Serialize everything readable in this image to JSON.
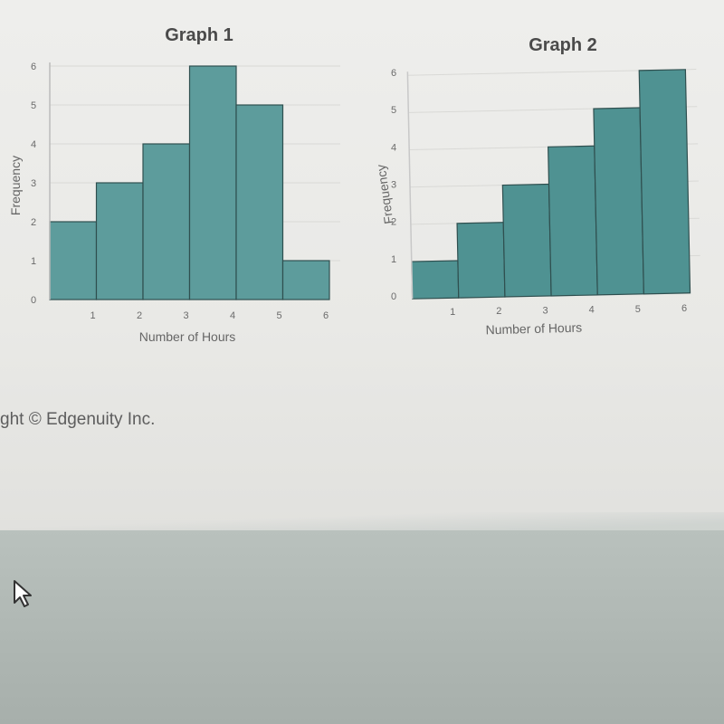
{
  "chart_data": [
    {
      "type": "bar",
      "title": "Graph 1",
      "xlabel": "Number of Hours",
      "ylabel": "Frequency",
      "bins": [
        [
          0,
          1
        ],
        [
          1,
          2
        ],
        [
          2,
          3
        ],
        [
          3,
          4
        ],
        [
          4,
          5
        ],
        [
          5,
          6
        ]
      ],
      "values": [
        2,
        3,
        4,
        6,
        5,
        1
      ],
      "xlim": [
        0,
        6
      ],
      "ylim": [
        0,
        6
      ],
      "x_ticks": [
        "1",
        "2",
        "3",
        "4",
        "5",
        "6"
      ],
      "y_ticks": [
        "0",
        "1",
        "2",
        "3",
        "4",
        "5",
        "6"
      ],
      "grid": true,
      "bar_color": "#5d9c9c"
    },
    {
      "type": "bar",
      "title": "Graph 2",
      "xlabel": "Number of Hours",
      "ylabel": "Frequency",
      "bins": [
        [
          0,
          1
        ],
        [
          1,
          2
        ],
        [
          2,
          3
        ],
        [
          3,
          4
        ],
        [
          4,
          5
        ],
        [
          5,
          6
        ]
      ],
      "values": [
        1,
        2,
        3,
        4,
        5,
        6
      ],
      "xlim": [
        0,
        6
      ],
      "ylim": [
        0,
        6
      ],
      "x_ticks": [
        "1",
        "2",
        "3",
        "4",
        "5",
        "6"
      ],
      "y_ticks": [
        "0",
        "1",
        "2",
        "3",
        "4",
        "5",
        "6"
      ],
      "grid": true,
      "bar_color": "#4f9292"
    }
  ],
  "copyright": "ght © Edgenuity Inc.",
  "icons": {
    "cursor": "mouse-pointer-icon"
  }
}
